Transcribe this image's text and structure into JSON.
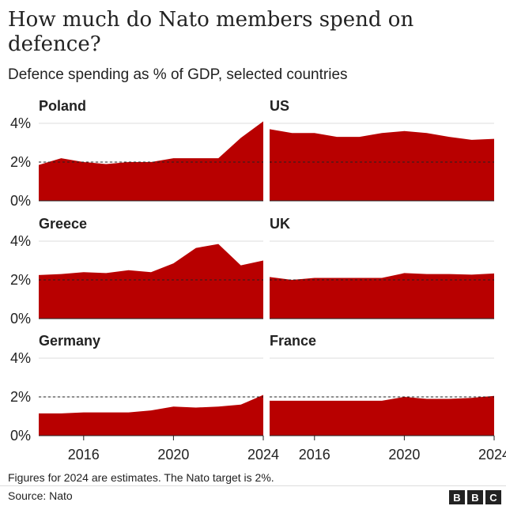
{
  "title": "How much do Nato members spend on defence?",
  "subtitle": "Defence spending as % of GDP, selected countries",
  "footnote": "Figures for 2024 are estimates. The Nato target is 2%.",
  "source": "Source: Nato",
  "logo": [
    "B",
    "B",
    "C"
  ],
  "colors": {
    "area": "#b80000",
    "target_line": "#222222",
    "text": "#222222"
  },
  "chart_data": {
    "type": "area",
    "x": [
      2014,
      2015,
      2016,
      2017,
      2018,
      2019,
      2020,
      2021,
      2022,
      2023,
      2024
    ],
    "ylim": [
      0,
      4
    ],
    "xlim": [
      2014,
      2024
    ],
    "y_ticks": [
      "0%",
      "2%",
      "4%"
    ],
    "x_ticks": [
      "2016",
      "2020",
      "2024"
    ],
    "x_tick_values": [
      2016,
      2020,
      2024
    ],
    "target": 2,
    "series": [
      {
        "name": "Poland",
        "values": [
          1.85,
          2.2,
          2.0,
          1.9,
          2.0,
          2.0,
          2.2,
          2.2,
          2.2,
          3.25,
          4.1
        ]
      },
      {
        "name": "US",
        "values": [
          3.7,
          3.5,
          3.5,
          3.3,
          3.3,
          3.5,
          3.6,
          3.5,
          3.3,
          3.15,
          3.2
        ]
      },
      {
        "name": "Greece",
        "values": [
          2.25,
          2.3,
          2.4,
          2.35,
          2.5,
          2.4,
          2.85,
          3.65,
          3.85,
          2.75,
          3.0
        ]
      },
      {
        "name": "UK",
        "values": [
          2.15,
          2.0,
          2.1,
          2.1,
          2.1,
          2.1,
          2.35,
          2.3,
          2.3,
          2.27,
          2.33
        ]
      },
      {
        "name": "Germany",
        "values": [
          1.15,
          1.15,
          1.2,
          1.2,
          1.2,
          1.3,
          1.5,
          1.45,
          1.5,
          1.6,
          2.1
        ]
      },
      {
        "name": "France",
        "values": [
          1.8,
          1.8,
          1.8,
          1.8,
          1.8,
          1.8,
          2.0,
          1.9,
          1.9,
          1.95,
          2.05
        ]
      }
    ]
  }
}
